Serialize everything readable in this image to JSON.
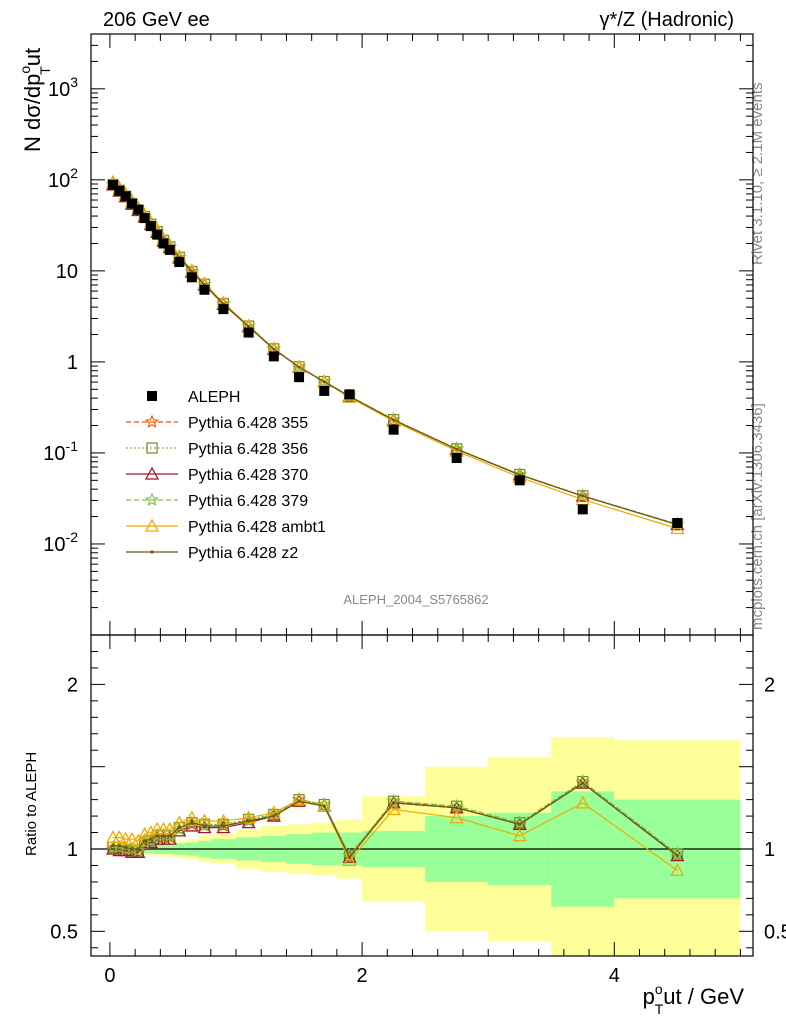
{
  "header": {
    "left": "206 GeV ee",
    "right": "γ*/Z (Hadronic)"
  },
  "side": {
    "rivet": "Rivet 3.1.10, ≥ 2.1M events",
    "site": "mcplots.cern.ch [arXiv:1306.3436]"
  },
  "watermark": "ALEPH_2004_S5765862",
  "colors": {
    "data": "#000000",
    "p355": "#ff5500",
    "p356": "#6b8e23",
    "p370": "#a0182d",
    "p379": "#7ac142",
    "ambt1": "#f2a900",
    "z2": "#6b5a10",
    "band_inner": "#99ff99",
    "band_outer": "#ffff99"
  },
  "chart_data": {
    "type": "line",
    "title": "γ*/Z (Hadronic)",
    "energy_label": "206 GeV ee",
    "xlabel": "p_T^out / GeV",
    "xlabel_main": "p",
    "xlabel_sup": "o",
    "xlabel_sub": "T",
    "xlabel_rest": "ut / GeV",
    "ylabel": "N dσ/dp_T^out",
    "ylabel_main": "N dσ/dp",
    "ylabel_sup": "o",
    "ylabel_sub": "T",
    "ylabel_rest": "ut",
    "ratio_ylabel": "Ratio to ALEPH",
    "xlim": [
      -0.15,
      5.1
    ],
    "ylim": [
      0.001,
      4000
    ],
    "yscale": "log",
    "ratio_ylim": [
      0.35,
      2.3
    ],
    "xticks": [
      "0",
      "2",
      "4"
    ],
    "yticks": [
      "10^{-2}",
      "10^{-1}",
      "1",
      "10",
      "10^{2}",
      "10^{3}"
    ],
    "ratio_yticks": [
      "0.5",
      "1",
      "2"
    ],
    "x": [
      0.025,
      0.075,
      0.125,
      0.175,
      0.225,
      0.275,
      0.325,
      0.375,
      0.425,
      0.475,
      0.55,
      0.65,
      0.75,
      0.9,
      1.1,
      1.3,
      1.5,
      1.7,
      1.9,
      2.25,
      2.75,
      3.25,
      3.75,
      4.5
    ],
    "xbins": [
      0,
      0.05,
      0.1,
      0.15,
      0.2,
      0.25,
      0.3,
      0.35,
      0.4,
      0.45,
      0.5,
      0.6,
      0.7,
      0.8,
      1.0,
      1.2,
      1.4,
      1.6,
      1.8,
      2.0,
      2.5,
      3.0,
      3.5,
      4.0,
      5.0
    ],
    "data": {
      "name": "ALEPH",
      "values": [
        88,
        76,
        66,
        55,
        47,
        38,
        31,
        25,
        20,
        17,
        12.5,
        8.5,
        6.2,
        3.8,
        2.1,
        1.15,
        0.68,
        0.48,
        0.44,
        0.18,
        0.088,
        0.05,
        0.024,
        0.017
      ]
    },
    "band_inner_frac": [
      0.02,
      0.02,
      0.02,
      0.02,
      0.02,
      0.025,
      0.025,
      0.03,
      0.03,
      0.03,
      0.035,
      0.04,
      0.05,
      0.06,
      0.07,
      0.08,
      0.09,
      0.1,
      0.1,
      0.11,
      0.2,
      0.22,
      0.35,
      0.3,
      0.3
    ],
    "band_outer_frac": [
      0.03,
      0.03,
      0.03,
      0.03,
      0.035,
      0.035,
      0.04,
      0.04,
      0.045,
      0.045,
      0.05,
      0.06,
      0.08,
      0.09,
      0.12,
      0.14,
      0.15,
      0.16,
      0.18,
      0.32,
      0.5,
      0.56,
      0.68,
      0.66,
      0.7
    ],
    "series": [
      {
        "name": "Pythia 6.428 355",
        "style": "dashed",
        "marker": "star",
        "color": "#ff5500",
        "ratio": [
          1.0,
          1.0,
          0.99,
          0.99,
          0.98,
          1.04,
          1.05,
          1.07,
          1.07,
          1.07,
          1.12,
          1.15,
          1.14,
          1.14,
          1.17,
          1.2,
          1.3,
          1.27,
          0.96,
          1.29,
          1.25,
          1.15,
          1.4,
          0.97
        ]
      },
      {
        "name": "Pythia 6.428 356",
        "style": "dotted",
        "marker": "square",
        "color": "#6b8e23",
        "ratio": [
          1.01,
          1.01,
          1.0,
          0.99,
          0.99,
          1.04,
          1.05,
          1.08,
          1.08,
          1.08,
          1.13,
          1.16,
          1.15,
          1.15,
          1.18,
          1.21,
          1.3,
          1.27,
          0.96,
          1.29,
          1.26,
          1.16,
          1.41,
          0.97
        ]
      },
      {
        "name": "Pythia 6.428 370",
        "style": "solid",
        "marker": "triangle",
        "color": "#a0182d",
        "ratio": [
          1.0,
          0.99,
          0.99,
          0.98,
          0.98,
          1.03,
          1.04,
          1.06,
          1.06,
          1.06,
          1.11,
          1.14,
          1.13,
          1.13,
          1.16,
          1.2,
          1.29,
          1.26,
          0.95,
          1.28,
          1.25,
          1.15,
          1.4,
          0.96
        ]
      },
      {
        "name": "Pythia 6.428 379",
        "style": "dashed",
        "marker": "star",
        "color": "#7ac142",
        "ratio": [
          1.01,
          1.01,
          1.0,
          1.0,
          0.99,
          1.04,
          1.05,
          1.08,
          1.08,
          1.08,
          1.12,
          1.16,
          1.14,
          1.15,
          1.17,
          1.21,
          1.3,
          1.27,
          0.96,
          1.29,
          1.26,
          1.16,
          1.41,
          0.97
        ]
      },
      {
        "name": "Pythia 6.428 ambt1",
        "style": "solid",
        "marker": "triangle-open",
        "color": "#f2a900",
        "ratio": [
          1.07,
          1.07,
          1.06,
          1.06,
          1.05,
          1.09,
          1.1,
          1.12,
          1.12,
          1.12,
          1.16,
          1.19,
          1.17,
          1.17,
          1.19,
          1.22,
          1.3,
          1.26,
          0.93,
          1.24,
          1.19,
          1.08,
          1.28,
          0.87
        ]
      },
      {
        "name": "Pythia 6.428 z2",
        "style": "solid",
        "marker": "dot",
        "color": "#6b5a10",
        "ratio": [
          1.02,
          1.02,
          1.01,
          1.0,
          1.0,
          1.05,
          1.06,
          1.08,
          1.08,
          1.08,
          1.13,
          1.16,
          1.14,
          1.14,
          1.17,
          1.2,
          1.29,
          1.26,
          0.95,
          1.28,
          1.25,
          1.15,
          1.4,
          0.96
        ]
      }
    ]
  }
}
